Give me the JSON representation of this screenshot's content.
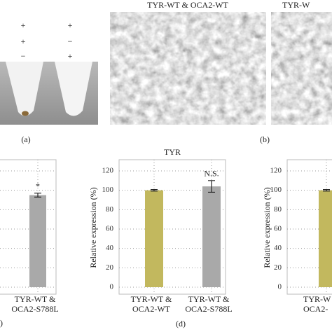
{
  "panel_a": {
    "label": "(a)",
    "signs": [
      [
        "+",
        "+"
      ],
      [
        "+",
        "−"
      ],
      [
        "−",
        "+"
      ]
    ]
  },
  "panel_b": {
    "label": "(b)",
    "images": [
      {
        "title": "TYR-WT & OCA2-WT"
      },
      {
        "title": "TYR-W"
      }
    ]
  },
  "panel_c": {
    "label": ")"
  },
  "panel_d": {
    "label": "(d)"
  },
  "chart_data": [
    {
      "type": "bar",
      "ylim": [
        0,
        120
      ],
      "grid_values": [
        0,
        20,
        40,
        60,
        80,
        100,
        120
      ],
      "bars": [
        {
          "category": [
            "TYR-WT &",
            "OCA2-S788L"
          ],
          "value": 95,
          "error": 2,
          "color": "#a9a9a9",
          "label": "*"
        }
      ]
    },
    {
      "type": "bar",
      "title": "TYR",
      "y_label": "Relative expression (%)",
      "ylim": [
        0,
        120
      ],
      "yticks": [
        0,
        20,
        40,
        60,
        80,
        100,
        120
      ],
      "bars": [
        {
          "category": [
            "TYR-WT &",
            "OCA2-WT"
          ],
          "value": 100,
          "error": 0.8,
          "color": "#c2b85e"
        },
        {
          "category": [
            "TYR-WT &",
            "OCA2-S788L"
          ],
          "value": 104,
          "error": 6,
          "color": "#a9a9a9",
          "label": "N.S."
        }
      ]
    },
    {
      "type": "bar",
      "y_label": "Relative expression (%)",
      "ylim": [
        0,
        120
      ],
      "yticks": [
        0,
        20,
        40,
        60,
        80,
        100,
        120
      ],
      "bars": [
        {
          "category": [
            "TYR-W",
            "OCA2-"
          ],
          "value": 100,
          "error": 0.8,
          "color": "#c2b85e"
        }
      ]
    }
  ]
}
